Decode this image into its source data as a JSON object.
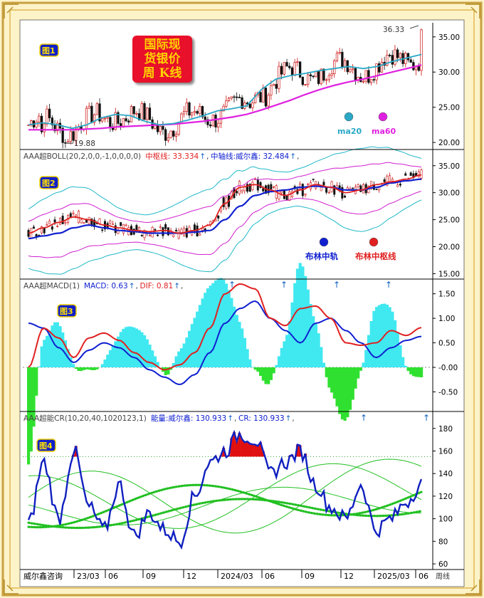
{
  "badge": {
    "line1": "国际现",
    "line2": "货银价",
    "line3": "周 K线",
    "bg": "#e8102a",
    "fg": "#ffd200"
  },
  "panels": {
    "p1": {
      "tag": "图1",
      "max_label": "36.33",
      "min_label": "19.88",
      "ticks": [
        "35.00",
        "30.00",
        "25.00",
        "20.00"
      ],
      "legend": [
        {
          "name": "ma20",
          "color": "#2aa8c6"
        },
        {
          "name": "ma60",
          "color": "#e020e0"
        }
      ]
    },
    "p2": {
      "tag": "图2",
      "title": "AAA超BOLL(20,2,0,0,-1,0,0,0,0)",
      "item1": "中枢线: 33.334",
      "item1_arrow": "↑",
      "item2": "中轴线:威尔鑫: 32.484",
      "item2_arrow": "↑",
      "tail": ",",
      "ticks": [
        "35.00",
        "30.00",
        "25.00",
        "20.00",
        "15.00"
      ],
      "legend": [
        {
          "name": "布林中轨",
          "color": "#1020d0"
        },
        {
          "name": "布林中枢线",
          "color": "#e02020"
        }
      ]
    },
    "p3": {
      "tag": "图3",
      "title": "AAA超MACD(1)",
      "item1": "MACD: 0.63",
      "item1_arrow": "↑",
      "item2": "DIF: 0.81",
      "item2_arrow": "↑",
      "tail": ",",
      "ticks": [
        "1.50",
        "1.00",
        "0.50",
        "-0.00",
        "-0.50"
      ]
    },
    "p4": {
      "tag": "图4",
      "title": "AAA超能CR(10,20,40,1020123,1)",
      "item1": "能量:威尔鑫: 130.933",
      "item1_arrow": "↑",
      "item2": "CR: 130.933",
      "item2_arrow": "↑",
      "tail": ",",
      "ticks": [
        "180",
        "160",
        "140",
        "120",
        "100",
        "80",
        "60"
      ]
    }
  },
  "xaxis": {
    "source": "威尔鑫咨询",
    "labels": [
      "23/03",
      "06",
      "09",
      "12",
      "2024/03",
      "06",
      "09",
      "12",
      "2025/03",
      "06"
    ],
    "unit": "周线"
  },
  "colors": {
    "up": "#cc1010",
    "down": "#111111",
    "ma20": "#2aa8c6",
    "ma60": "#e020e0",
    "boll_mid": "#1020d0",
    "boll_center": "#e02020",
    "dif": "#1020d0",
    "dea": "#e02020",
    "hist_pos": "#40e8f0",
    "hist_neg": "#30e030",
    "cr": "#1020c0",
    "cr_ma": "#22c022"
  },
  "chart_data": {
    "type": "candlestick",
    "series": [
      {
        "name": "ma20",
        "values": [
          22.5,
          22.8,
          22.5,
          22.0,
          22.5,
          23.5,
          24.0,
          23.8,
          23.0,
          22.5,
          22.7,
          23.2,
          23.8,
          24.5,
          24.8,
          25.2,
          27.5,
          29.0,
          29.5,
          29.8,
          30.2,
          30.5,
          30.8,
          30.5,
          30.8,
          31.5,
          32.0,
          32.5
        ]
      },
      {
        "name": "ma60",
        "values": [
          21.8,
          21.8,
          21.8,
          21.8,
          21.9,
          22.0,
          22.2,
          22.3,
          22.4,
          22.5,
          22.6,
          22.8,
          23.0,
          23.3,
          23.6,
          24.0,
          24.6,
          25.3,
          26.0,
          26.8,
          27.5,
          28.1,
          28.6,
          29.0,
          29.5,
          30.0,
          30.5,
          31.0
        ]
      },
      {
        "name": "中枢线",
        "values": [
          22.5,
          23.5,
          24.5,
          25.5,
          25.0,
          24.0,
          23.5,
          23.0,
          22.8,
          23.0,
          22.5,
          23.0,
          24.0,
          28.0,
          31.0,
          31.5,
          30.5,
          29.5,
          30.5,
          31.5,
          31.0,
          30.0,
          30.5,
          31.5,
          32.0,
          32.5,
          33.3
        ]
      },
      {
        "name": "中轴线",
        "values": [
          21.5,
          22.0,
          22.5,
          23.5,
          24.0,
          23.5,
          23.0,
          22.8,
          22.5,
          22.5,
          22.5,
          22.7,
          23.0,
          25.0,
          27.5,
          29.5,
          30.2,
          30.5,
          31.0,
          31.2,
          31.0,
          30.5,
          30.5,
          31.0,
          31.8,
          32.2,
          32.5
        ]
      },
      {
        "name": "MACD",
        "values": [
          0.9,
          0.8,
          0.4,
          0.1,
          0.35,
          0.5,
          0.4,
          0.2,
          -0.05,
          -0.2,
          -0.35,
          -0.15,
          0.3,
          0.9,
          1.2,
          1.35,
          1.0,
          0.75,
          0.5,
          0.9,
          1.0,
          0.75,
          0.5,
          0.2,
          0.4,
          0.55,
          0.63
        ]
      },
      {
        "name": "DIF",
        "values": [
          0.0,
          0.8,
          0.6,
          0.2,
          0.6,
          0.7,
          0.55,
          0.3,
          0.1,
          -0.05,
          0.05,
          0.3,
          0.8,
          1.5,
          1.7,
          1.6,
          1.0,
          0.85,
          1.2,
          1.25,
          1.0,
          0.5,
          0.45,
          0.5,
          0.75,
          0.65,
          0.81
        ]
      },
      {
        "name": "CR",
        "values": [
          95,
          150,
          100,
          160,
          110,
          90,
          130,
          85,
          105,
          90,
          80,
          120,
          150,
          160,
          175,
          170,
          140,
          150,
          160,
          130,
          110,
          100,
          130,
          90,
          100,
          115,
          131
        ]
      }
    ],
    "marked_max": 36.33,
    "marked_min": 19.88,
    "ylim_p1": [
      19,
      37
    ],
    "ylim_p2": [
      14,
      38
    ],
    "ylim_p3": [
      -0.9,
      1.8
    ],
    "ylim_p4": [
      55,
      195
    ]
  }
}
